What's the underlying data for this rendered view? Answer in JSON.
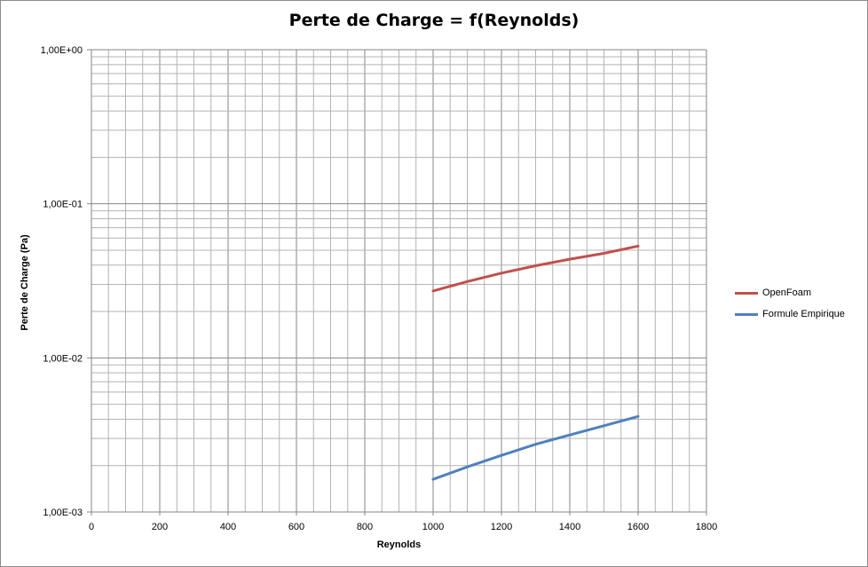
{
  "chart_data": {
    "type": "line",
    "title": "Perte de Charge = f(Reynolds)",
    "xlabel": "Reynolds",
    "ylabel": "Perte de Charge (Pa)",
    "xlim": [
      0,
      1800
    ],
    "ylim": [
      0.001,
      1
    ],
    "yscale": "log",
    "grid": true,
    "legend": "right",
    "x_ticks": [
      "0",
      "200",
      "400",
      "600",
      "800",
      "1000",
      "1200",
      "1400",
      "1600",
      "1800"
    ],
    "y_ticks": [
      "1,00E-03",
      "1,00E-02",
      "1,00E-01",
      "1,00E+00"
    ],
    "series": [
      {
        "name": "OpenFoam",
        "color": "#c0504d",
        "x": [
          1000,
          1100,
          1200,
          1300,
          1400,
          1500,
          1600
        ],
        "y": [
          0.0272,
          0.0313,
          0.0355,
          0.0396,
          0.0437,
          0.0477,
          0.0532
        ]
      },
      {
        "name": "Formule Empirique",
        "color": "#4f81bd",
        "x": [
          1000,
          1100,
          1200,
          1300,
          1400,
          1500,
          1600
        ],
        "y": [
          0.00163,
          0.00196,
          0.00233,
          0.00275,
          0.00316,
          0.00363,
          0.00417
        ]
      }
    ]
  }
}
